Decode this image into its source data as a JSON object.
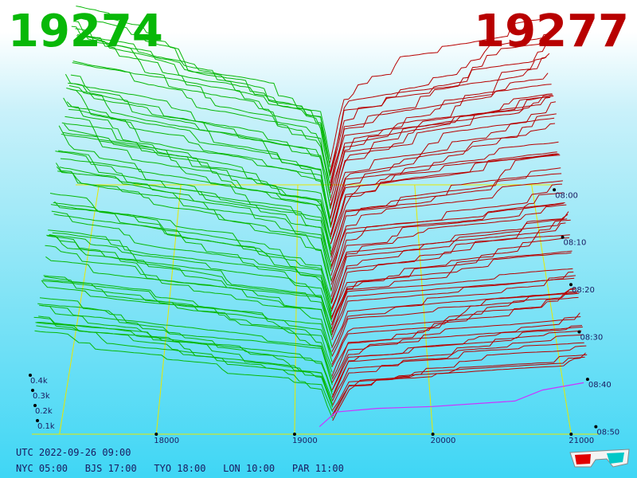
{
  "header": {
    "bid_price": "19274",
    "ask_price": "19277"
  },
  "footer": {
    "utc": "UTC 2022-09-26 09:00",
    "zones": [
      {
        "city": "NYC",
        "time": "05:00"
      },
      {
        "city": "BJS",
        "time": "17:00"
      },
      {
        "city": "TYO",
        "time": "18:00"
      },
      {
        "city": "LON",
        "time": "10:00"
      },
      {
        "city": "PAR",
        "time": "11:00"
      }
    ]
  },
  "colors": {
    "bid": "#08b808",
    "ask": "#b80000",
    "grid": "#e8e800",
    "trade": "#cc33ff",
    "axis_text": "#1a1a60"
  },
  "icons": [
    "3d-glasses-icon"
  ],
  "chart_data": {
    "type": "3d-depth-chart",
    "price_axis": {
      "ticks": [
        18000,
        19000,
        20000,
        21000
      ],
      "range": [
        17100,
        21200
      ]
    },
    "volume_axis": {
      "ticks": [
        "0.1k",
        "0.2k",
        "0.3k",
        "0.4k"
      ]
    },
    "time_axis": {
      "ticks": [
        "08:00",
        "08:10",
        "08:20",
        "08:30",
        "08:40",
        "08:50"
      ]
    },
    "series": [
      {
        "name": "bids",
        "color": "#08b808",
        "side": "bid"
      },
      {
        "name": "asks",
        "color": "#b80000",
        "side": "ask"
      }
    ],
    "mid_price": 19275,
    "snapshot_count": 60
  }
}
